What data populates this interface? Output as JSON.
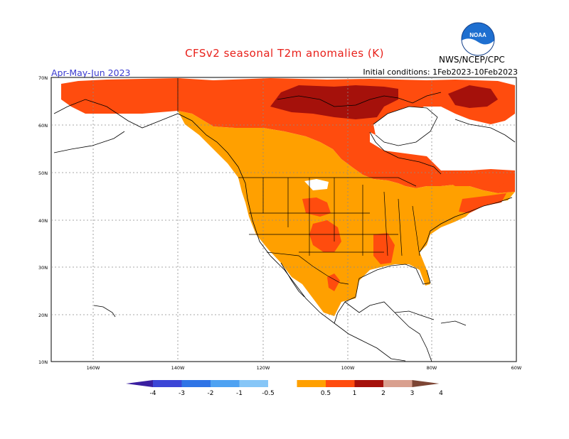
{
  "title": "CFSv2 seasonal T2m anomalies (K)",
  "period": "Apr-May-Jun 2023",
  "initial_conditions": "Initial conditions: 1Feb2023-10Feb2023",
  "agency": "NWS/NCEP/CPC",
  "logo_text": "NOAA",
  "lat_labels": [
    "70N",
    "60N",
    "50N",
    "40N",
    "30N",
    "20N",
    "10N"
  ],
  "lon_labels": [
    "160W",
    "140W",
    "120W",
    "100W",
    "80W",
    "60W"
  ],
  "legend": {
    "labels": [
      "-4",
      "-3",
      "-2",
      "-1",
      "-0.5",
      "0.5",
      "1",
      "2",
      "3",
      "4"
    ],
    "colors": [
      "#3a1fa0",
      "#3c46d6",
      "#2f74e6",
      "#4ea2f2",
      "#86c6f7",
      "#ffffff",
      "#ffa000",
      "#ff4c0e",
      "#a5110b",
      "#d9a08f",
      "#7d4635"
    ]
  },
  "colors": {
    "warm_05_1": "#ffa000",
    "warm_1_2": "#ff4c0e",
    "warm_2_3": "#a5110b",
    "title_red": "#e8201a",
    "period_blue": "#3b3bd0"
  }
}
